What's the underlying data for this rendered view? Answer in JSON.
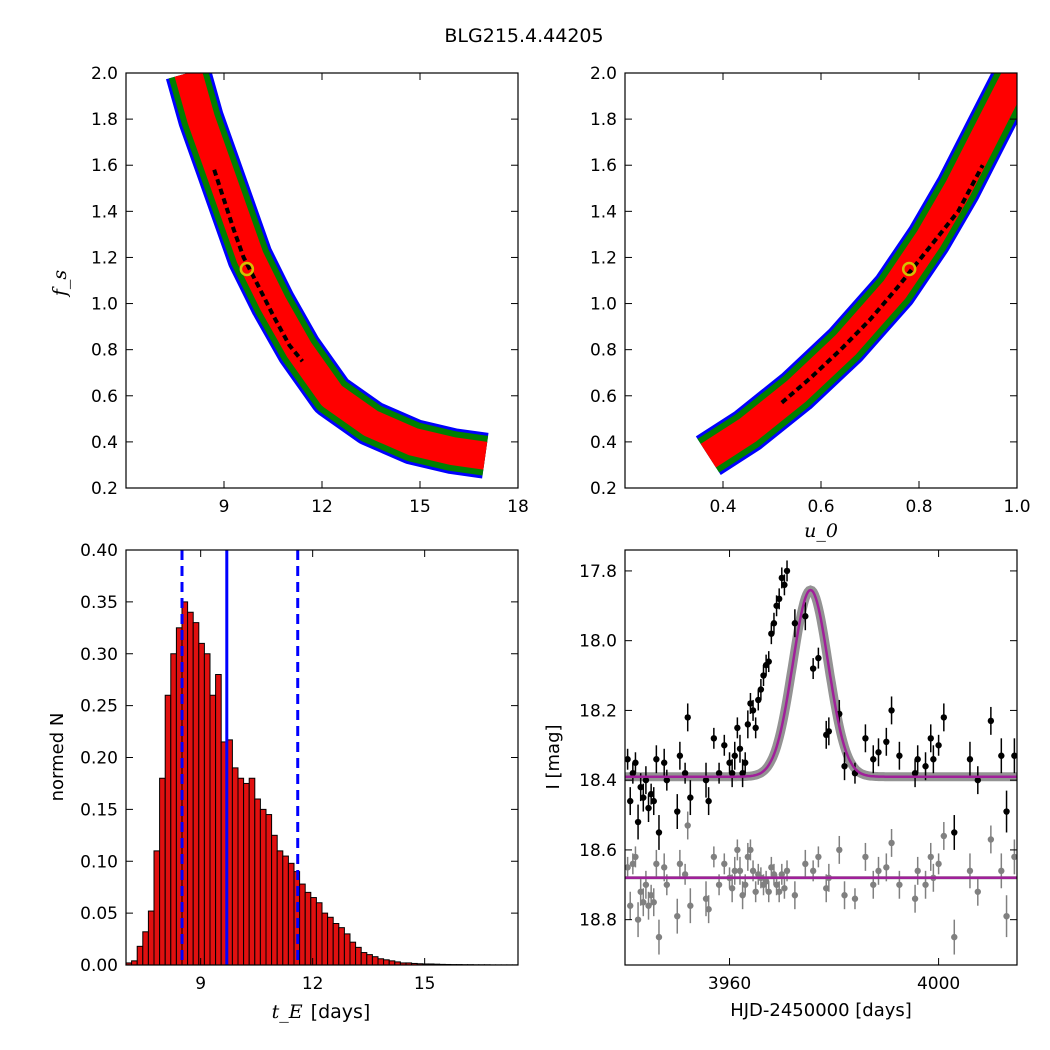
{
  "figure_title": "BLG215.4.44205",
  "colors": {
    "contour_outer": "#0000ff",
    "contour_mid": "#007f00",
    "contour_inner": "#ff0000",
    "contour_core": "#000000",
    "best_fit_marker": "#d4c000",
    "hist_bar": "#e01010",
    "hist_lines": "#0000ff",
    "model_curve": "#a0209a",
    "model_band": "#808080",
    "data_points": "#000000",
    "residual_points": "#808080"
  },
  "chart_data": [
    {
      "id": "tE_vs_fs",
      "type": "heatmap",
      "xlabel": "",
      "ylabel": "f_s",
      "xlim": [
        6,
        18
      ],
      "ylim": [
        0.2,
        2.0
      ],
      "xticks": [
        "9",
        "12",
        "15",
        "18"
      ],
      "yticks": [
        "0.2",
        "0.4",
        "0.6",
        "0.8",
        "1.0",
        "1.2",
        "1.4",
        "1.6",
        "1.8",
        "2.0"
      ],
      "ridge": [
        [
          7.9,
          2.0
        ],
        [
          8.3,
          1.8
        ],
        [
          8.8,
          1.6
        ],
        [
          9.3,
          1.4
        ],
        [
          9.8,
          1.2
        ],
        [
          10.5,
          1.0
        ],
        [
          11.3,
          0.8
        ],
        [
          12.3,
          0.6
        ],
        [
          13.5,
          0.48
        ],
        [
          14.8,
          0.4
        ],
        [
          16.0,
          0.36
        ],
        [
          17.0,
          0.34
        ]
      ],
      "core_band": [
        [
          8.7,
          1.58
        ],
        [
          9.0,
          1.45
        ],
        [
          9.3,
          1.32
        ],
        [
          9.6,
          1.2
        ],
        [
          10.0,
          1.09
        ],
        [
          10.5,
          0.95
        ],
        [
          11.0,
          0.82
        ],
        [
          11.4,
          0.75
        ]
      ],
      "best_fit": {
        "x": 9.7,
        "y": 1.15
      }
    },
    {
      "id": "u0_vs_fs",
      "type": "heatmap",
      "xlabel": "u_0",
      "ylabel": "",
      "xlim": [
        0.2,
        1.0
      ],
      "ylim": [
        0.2,
        2.0
      ],
      "xticks": [
        "0.4",
        "0.6",
        "0.8",
        "1.0"
      ],
      "yticks": [
        "0.2",
        "0.4",
        "0.6",
        "0.8",
        "1.0",
        "1.2",
        "1.4",
        "1.6",
        "1.8",
        "2.0"
      ],
      "ridge": [
        [
          0.37,
          0.34
        ],
        [
          0.45,
          0.45
        ],
        [
          0.55,
          0.62
        ],
        [
          0.65,
          0.82
        ],
        [
          0.75,
          1.06
        ],
        [
          0.82,
          1.28
        ],
        [
          0.88,
          1.5
        ],
        [
          0.94,
          1.75
        ],
        [
          1.0,
          2.0
        ]
      ],
      "core_band": [
        [
          0.52,
          0.57
        ],
        [
          0.58,
          0.68
        ],
        [
          0.64,
          0.8
        ],
        [
          0.7,
          0.93
        ],
        [
          0.76,
          1.08
        ],
        [
          0.82,
          1.24
        ],
        [
          0.88,
          1.4
        ],
        [
          0.93,
          1.6
        ]
      ],
      "best_fit": {
        "x": 0.78,
        "y": 1.15
      }
    },
    {
      "id": "tE_histogram",
      "type": "bar",
      "xlabel": "t_E",
      "xlabel_unit": "[days]",
      "ylabel": "normed N",
      "xlim": [
        7.0,
        17.5
      ],
      "ylim": [
        0.0,
        0.4
      ],
      "xticks": [
        "9",
        "12",
        "15"
      ],
      "yticks": [
        "0.00",
        "0.05",
        "0.10",
        "0.15",
        "0.20",
        "0.25",
        "0.30",
        "0.35",
        "0.40"
      ],
      "bin_start": 7.0,
      "bin_width": 0.15,
      "values": [
        0.002,
        0.004,
        0.018,
        0.032,
        0.052,
        0.11,
        0.18,
        0.26,
        0.3,
        0.325,
        0.35,
        0.34,
        0.33,
        0.31,
        0.3,
        0.26,
        0.28,
        0.215,
        0.217,
        0.19,
        0.18,
        0.175,
        0.18,
        0.16,
        0.15,
        0.145,
        0.125,
        0.11,
        0.105,
        0.098,
        0.09,
        0.078,
        0.07,
        0.065,
        0.06,
        0.05,
        0.046,
        0.04,
        0.036,
        0.03,
        0.022,
        0.017,
        0.012,
        0.01,
        0.008,
        0.006,
        0.005,
        0.004,
        0.003,
        0.002,
        0.002,
        0.0015,
        0.0012,
        0.001,
        0.001,
        0.0008,
        0.0006,
        0.0005,
        0.0004,
        0.0004,
        0.0003,
        0.0003,
        0.0002,
        0.0002,
        0.0002,
        0.0001,
        0.0001,
        0.0001,
        0.0001,
        0.0001
      ],
      "median": 9.7,
      "percentile_low": 8.5,
      "percentile_high": 11.6
    },
    {
      "id": "lightcurve",
      "type": "scatter",
      "xlabel": "HJD-2450000 [days]",
      "ylabel": "I [mag]",
      "xlim": [
        3940,
        4015
      ],
      "ylim": [
        18.93,
        17.74
      ],
      "xticks": [
        "3960",
        "4000"
      ],
      "yticks": [
        "17.8",
        "18.0",
        "18.2",
        "18.4",
        "18.6",
        "18.8"
      ],
      "model": {
        "t0": 3975.5,
        "baseline": 18.39,
        "peak": 17.855,
        "width": 4.8
      },
      "residual_baseline": 18.68,
      "data": [
        [
          3940.5,
          18.34,
          0.03
        ],
        [
          3941.0,
          18.46,
          0.04
        ],
        [
          3941.5,
          18.38,
          0.03
        ],
        [
          3942.0,
          18.35,
          0.03
        ],
        [
          3942.5,
          18.52,
          0.05
        ],
        [
          3943.0,
          18.42,
          0.04
        ],
        [
          3943.5,
          18.45,
          0.04
        ],
        [
          3944.0,
          18.4,
          0.04
        ],
        [
          3944.5,
          18.48,
          0.04
        ],
        [
          3945.0,
          18.44,
          0.03
        ],
        [
          3945.5,
          18.46,
          0.04
        ],
        [
          3946.0,
          18.34,
          0.04
        ],
        [
          3946.5,
          18.55,
          0.05
        ],
        [
          3947.5,
          18.35,
          0.04
        ],
        [
          3948.0,
          18.4,
          0.03
        ],
        [
          3950.0,
          18.49,
          0.05
        ],
        [
          3950.5,
          18.33,
          0.04
        ],
        [
          3951.5,
          18.38,
          0.03
        ],
        [
          3952.0,
          18.22,
          0.04
        ],
        [
          3952.5,
          18.45,
          0.05
        ],
        [
          3955.5,
          18.4,
          0.05
        ],
        [
          3956.0,
          18.46,
          0.04
        ],
        [
          3957.0,
          18.28,
          0.03
        ],
        [
          3958.0,
          18.38,
          0.03
        ],
        [
          3959.0,
          18.3,
          0.03
        ],
        [
          3960.0,
          18.35,
          0.03
        ],
        [
          3960.5,
          18.38,
          0.04
        ],
        [
          3961.0,
          18.33,
          0.04
        ],
        [
          3961.5,
          18.25,
          0.03
        ],
        [
          3962.0,
          18.31,
          0.04
        ],
        [
          3962.5,
          18.38,
          0.04
        ],
        [
          3963.0,
          18.35,
          0.03
        ],
        [
          3963.5,
          18.24,
          0.04
        ],
        [
          3964.0,
          18.18,
          0.03
        ],
        [
          3964.5,
          18.2,
          0.03
        ],
        [
          3965.0,
          18.25,
          0.03
        ],
        [
          3965.5,
          18.17,
          0.03
        ],
        [
          3966.0,
          18.14,
          0.03
        ],
        [
          3966.5,
          18.1,
          0.03
        ],
        [
          3967.0,
          18.07,
          0.03
        ],
        [
          3967.5,
          18.06,
          0.03
        ],
        [
          3968.0,
          17.98,
          0.03
        ],
        [
          3968.5,
          17.95,
          0.03
        ],
        [
          3969.0,
          17.9,
          0.03
        ],
        [
          3969.5,
          17.88,
          0.03
        ],
        [
          3970.0,
          17.82,
          0.03
        ],
        [
          3970.5,
          17.84,
          0.03
        ],
        [
          3971.0,
          17.8,
          0.03
        ],
        [
          3972.5,
          17.95,
          0.04
        ],
        [
          3974.5,
          17.93,
          0.04
        ],
        [
          3976.0,
          18.08,
          0.03
        ],
        [
          3977.0,
          18.05,
          0.03
        ],
        [
          3978.5,
          18.27,
          0.04
        ],
        [
          3979.0,
          18.26,
          0.04
        ],
        [
          3981.0,
          18.21,
          0.04
        ],
        [
          3982.0,
          18.36,
          0.04
        ],
        [
          3984.0,
          18.38,
          0.03
        ],
        [
          3986.0,
          18.28,
          0.04
        ],
        [
          3987.5,
          18.34,
          0.04
        ],
        [
          3988.5,
          18.32,
          0.04
        ],
        [
          3990.0,
          18.29,
          0.04
        ],
        [
          3991.0,
          18.2,
          0.04
        ],
        [
          3992.5,
          18.33,
          0.04
        ],
        [
          3995.5,
          18.38,
          0.04
        ],
        [
          3996.0,
          18.34,
          0.04
        ],
        [
          3997.5,
          18.36,
          0.04
        ],
        [
          3998.5,
          18.28,
          0.04
        ],
        [
          3999.0,
          18.34,
          0.04
        ],
        [
          4000.0,
          18.3,
          0.03
        ],
        [
          4001.0,
          18.22,
          0.04
        ],
        [
          4003.0,
          18.55,
          0.05
        ],
        [
          4006.0,
          18.34,
          0.05
        ],
        [
          4007.5,
          18.4,
          0.04
        ],
        [
          4010.0,
          18.23,
          0.04
        ],
        [
          4012.0,
          18.33,
          0.05
        ],
        [
          4013.0,
          18.49,
          0.06
        ],
        [
          4014.5,
          18.33,
          0.05
        ]
      ],
      "residuals": [
        [
          3940.5,
          18.65,
          0.03
        ],
        [
          3941.0,
          18.76,
          0.04
        ],
        [
          3941.5,
          18.64,
          0.03
        ],
        [
          3942.0,
          18.62,
          0.03
        ],
        [
          3942.5,
          18.8,
          0.05
        ],
        [
          3943.0,
          18.72,
          0.04
        ],
        [
          3943.5,
          18.75,
          0.04
        ],
        [
          3944.0,
          18.7,
          0.04
        ],
        [
          3944.5,
          18.76,
          0.04
        ],
        [
          3945.0,
          18.73,
          0.03
        ],
        [
          3945.5,
          18.75,
          0.04
        ],
        [
          3946.0,
          18.64,
          0.04
        ],
        [
          3946.5,
          18.85,
          0.05
        ],
        [
          3947.5,
          18.65,
          0.04
        ],
        [
          3948.0,
          18.7,
          0.03
        ],
        [
          3950.0,
          18.79,
          0.05
        ],
        [
          3950.5,
          18.64,
          0.04
        ],
        [
          3951.5,
          18.67,
          0.03
        ],
        [
          3952.0,
          18.53,
          0.04
        ],
        [
          3952.5,
          18.76,
          0.05
        ],
        [
          3955.5,
          18.74,
          0.05
        ],
        [
          3956.0,
          18.77,
          0.04
        ],
        [
          3957.0,
          18.62,
          0.03
        ],
        [
          3958.0,
          18.7,
          0.03
        ],
        [
          3959.0,
          18.64,
          0.03
        ],
        [
          3960.0,
          18.68,
          0.03
        ],
        [
          3960.5,
          18.71,
          0.04
        ],
        [
          3961.0,
          18.66,
          0.04
        ],
        [
          3961.5,
          18.6,
          0.03
        ],
        [
          3962.0,
          18.66,
          0.04
        ],
        [
          3962.5,
          18.73,
          0.04
        ],
        [
          3963.0,
          18.7,
          0.03
        ],
        [
          3963.5,
          18.62,
          0.04
        ],
        [
          3964.0,
          18.6,
          0.03
        ],
        [
          3964.5,
          18.66,
          0.03
        ],
        [
          3965.0,
          18.72,
          0.03
        ],
        [
          3965.5,
          18.67,
          0.03
        ],
        [
          3966.0,
          18.68,
          0.03
        ],
        [
          3966.5,
          18.7,
          0.03
        ],
        [
          3967.0,
          18.69,
          0.03
        ],
        [
          3967.5,
          18.72,
          0.03
        ],
        [
          3968.0,
          18.65,
          0.03
        ],
        [
          3968.5,
          18.67,
          0.03
        ],
        [
          3969.0,
          18.7,
          0.03
        ],
        [
          3969.5,
          18.72,
          0.03
        ],
        [
          3970.0,
          18.67,
          0.03
        ],
        [
          3970.5,
          18.71,
          0.03
        ],
        [
          3971.0,
          18.66,
          0.03
        ],
        [
          3972.5,
          18.73,
          0.04
        ],
        [
          3974.5,
          18.64,
          0.04
        ],
        [
          3976.0,
          18.66,
          0.03
        ],
        [
          3977.0,
          18.62,
          0.03
        ],
        [
          3978.5,
          18.71,
          0.04
        ],
        [
          3979.0,
          18.68,
          0.04
        ],
        [
          3981.0,
          18.6,
          0.04
        ],
        [
          3982.0,
          18.73,
          0.04
        ],
        [
          3984.0,
          18.74,
          0.03
        ],
        [
          3986.0,
          18.62,
          0.04
        ],
        [
          3987.5,
          18.7,
          0.04
        ],
        [
          3988.5,
          18.66,
          0.04
        ],
        [
          3990.0,
          18.65,
          0.04
        ],
        [
          3991.0,
          18.58,
          0.04
        ],
        [
          3992.5,
          18.7,
          0.04
        ],
        [
          3995.5,
          18.74,
          0.04
        ],
        [
          3996.0,
          18.66,
          0.04
        ],
        [
          3997.5,
          18.7,
          0.04
        ],
        [
          3998.5,
          18.62,
          0.04
        ],
        [
          3999.0,
          18.68,
          0.04
        ],
        [
          4000.0,
          18.64,
          0.03
        ],
        [
          4001.0,
          18.56,
          0.04
        ],
        [
          4003.0,
          18.85,
          0.05
        ],
        [
          4006.0,
          18.66,
          0.05
        ],
        [
          4007.5,
          18.72,
          0.04
        ],
        [
          4010.0,
          18.57,
          0.04
        ],
        [
          4012.0,
          18.66,
          0.05
        ],
        [
          4013.0,
          18.79,
          0.06
        ],
        [
          4014.5,
          18.62,
          0.05
        ]
      ]
    }
  ]
}
